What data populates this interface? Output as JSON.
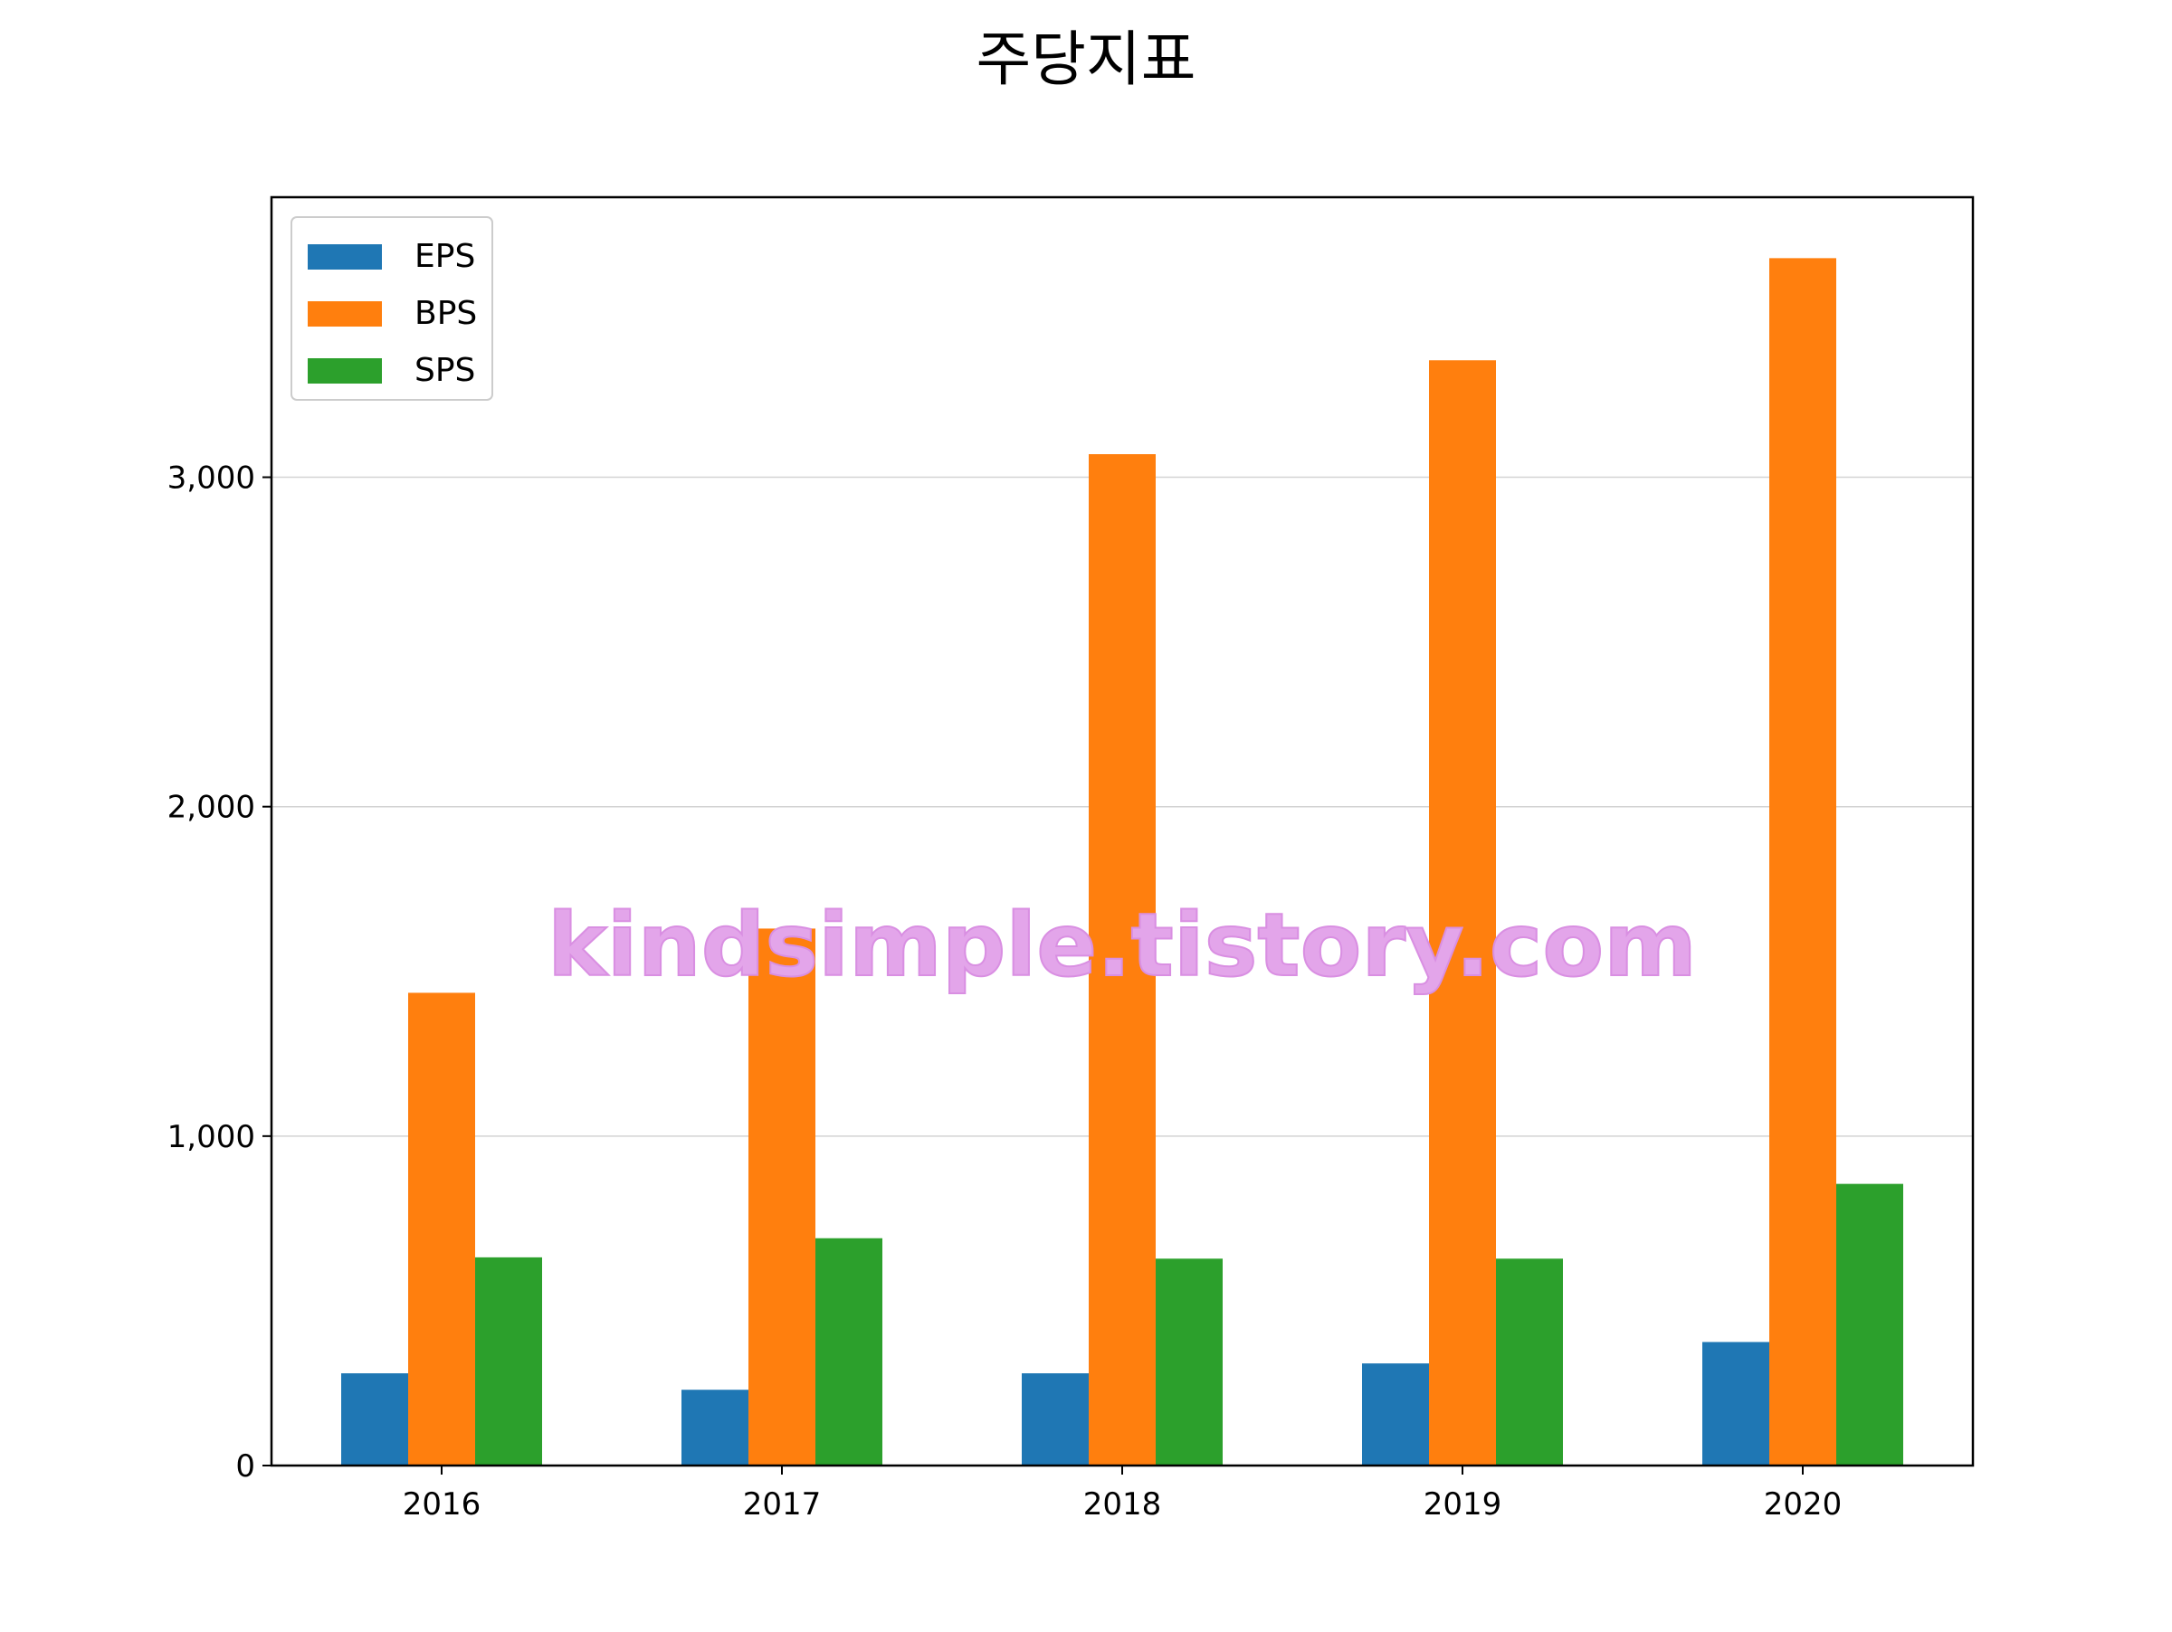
{
  "chart_data": {
    "type": "bar",
    "title": "주당지표",
    "categories": [
      "2016",
      "2017",
      "2018",
      "2019",
      "2020"
    ],
    "series": [
      {
        "name": "EPS",
        "values": [
          280,
          230,
          280,
          310,
          375
        ],
        "color": "#1f77b4"
      },
      {
        "name": "BPS",
        "values": [
          1435,
          1630,
          3070,
          3355,
          3665
        ],
        "color": "#ff7f0e"
      },
      {
        "name": "SPS",
        "values": [
          632,
          690,
          628,
          628,
          855
        ],
        "color": "#2ca02c"
      }
    ],
    "ylim": [
      0,
      3850
    ],
    "yticks": [
      0,
      1000,
      2000,
      3000
    ],
    "ytick_labels": [
      "0",
      "1,000",
      "2,000",
      "3,000"
    ],
    "grid": "horizontal",
    "legend_position": "top-left",
    "watermark": "kindsimple.tistory.com"
  }
}
